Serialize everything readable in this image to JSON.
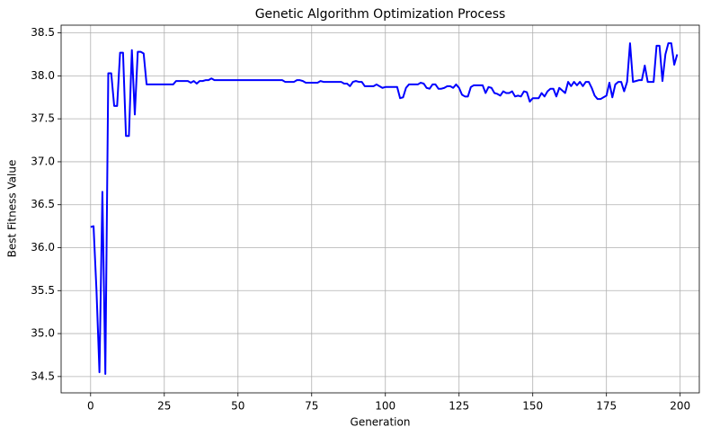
{
  "chart_data": {
    "type": "line",
    "title": "Genetic Algorithm Optimization Process",
    "x_label": "Generation",
    "y_label": "Best Fitness Value",
    "x": [
      0,
      1,
      2,
      3,
      4,
      5,
      6,
      7,
      8,
      9,
      10,
      11,
      12,
      13,
      14,
      15,
      16,
      17,
      18,
      19,
      20,
      21,
      22,
      23,
      24,
      25,
      26,
      27,
      28,
      29,
      30,
      31,
      32,
      33,
      34,
      35,
      36,
      37,
      38,
      39,
      40,
      41,
      42,
      43,
      44,
      45,
      46,
      47,
      48,
      49,
      50,
      51,
      52,
      53,
      54,
      55,
      56,
      57,
      58,
      59,
      60,
      61,
      62,
      63,
      64,
      65,
      66,
      67,
      68,
      69,
      70,
      71,
      72,
      73,
      74,
      75,
      76,
      77,
      78,
      79,
      80,
      81,
      82,
      83,
      84,
      85,
      86,
      87,
      88,
      89,
      90,
      91,
      92,
      93,
      94,
      95,
      96,
      97,
      98,
      99,
      100,
      101,
      102,
      103,
      104,
      105,
      106,
      107,
      108,
      109,
      110,
      111,
      112,
      113,
      114,
      115,
      116,
      117,
      118,
      119,
      120,
      121,
      122,
      123,
      124,
      125,
      126,
      127,
      128,
      129,
      130,
      131,
      132,
      133,
      134,
      135,
      136,
      137,
      138,
      139,
      140,
      141,
      142,
      143,
      144,
      145,
      146,
      147,
      148,
      149,
      150,
      151,
      152,
      153,
      154,
      155,
      156,
      157,
      158,
      159,
      160,
      161,
      162,
      163,
      164,
      165,
      166,
      167,
      168,
      169,
      170,
      171,
      172,
      173,
      174,
      175,
      176,
      177,
      178,
      179,
      180,
      181,
      182,
      183,
      184,
      185,
      186,
      187,
      188,
      189,
      190,
      191,
      192,
      193,
      194,
      195,
      196,
      197,
      198,
      199
    ],
    "series": [
      {
        "color": "#0000ff",
        "values": [
          36.24,
          36.25,
          35.5,
          34.55,
          36.65,
          34.53,
          38.03,
          38.03,
          37.65,
          37.65,
          38.27,
          38.27,
          37.3,
          37.3,
          38.3,
          37.55,
          38.28,
          38.28,
          38.26,
          37.9,
          37.9,
          37.9,
          37.9,
          37.9,
          37.9,
          37.9,
          37.9,
          37.9,
          37.9,
          37.94,
          37.94,
          37.94,
          37.94,
          37.94,
          37.92,
          37.94,
          37.91,
          37.94,
          37.94,
          37.95,
          37.95,
          37.97,
          37.95,
          37.95,
          37.95,
          37.95,
          37.95,
          37.95,
          37.95,
          37.95,
          37.95,
          37.95,
          37.95,
          37.95,
          37.95,
          37.95,
          37.95,
          37.95,
          37.95,
          37.95,
          37.95,
          37.95,
          37.95,
          37.95,
          37.95,
          37.95,
          37.93,
          37.93,
          37.93,
          37.93,
          37.95,
          37.95,
          37.94,
          37.92,
          37.92,
          37.92,
          37.92,
          37.92,
          37.94,
          37.93,
          37.93,
          37.93,
          37.93,
          37.93,
          37.93,
          37.93,
          37.91,
          37.91,
          37.88,
          37.93,
          37.94,
          37.93,
          37.93,
          37.88,
          37.88,
          37.88,
          37.88,
          37.9,
          37.88,
          37.86,
          37.87,
          37.87,
          37.87,
          37.87,
          37.87,
          37.74,
          37.75,
          37.86,
          37.9,
          37.9,
          37.9,
          37.9,
          37.92,
          37.91,
          37.86,
          37.85,
          37.9,
          37.9,
          37.85,
          37.85,
          37.86,
          37.88,
          37.88,
          37.86,
          37.9,
          37.86,
          37.78,
          37.76,
          37.76,
          37.87,
          37.89,
          37.89,
          37.89,
          37.89,
          37.8,
          37.87,
          37.86,
          37.8,
          37.79,
          37.77,
          37.82,
          37.8,
          37.8,
          37.82,
          37.76,
          37.77,
          37.76,
          37.82,
          37.81,
          37.7,
          37.74,
          37.74,
          37.74,
          37.8,
          37.76,
          37.82,
          37.85,
          37.85,
          37.76,
          37.86,
          37.83,
          37.8,
          37.93,
          37.88,
          37.93,
          37.89,
          37.93,
          37.88,
          37.93,
          37.93,
          37.86,
          37.77,
          37.73,
          37.73,
          37.75,
          37.77,
          37.92,
          37.75,
          37.9,
          37.93,
          37.93,
          37.82,
          37.93,
          38.38,
          37.93,
          37.94,
          37.95,
          37.95,
          38.12,
          37.93,
          37.93,
          37.93,
          38.35,
          38.35,
          37.94,
          38.25,
          38.38,
          38.38,
          38.13,
          38.25
        ]
      }
    ],
    "xlim": [
      -10,
      206.5
    ],
    "ylim": [
      34.31,
      38.59
    ],
    "xticks": [
      0,
      25,
      50,
      75,
      100,
      125,
      150,
      175,
      200
    ],
    "yticks": [
      34.5,
      {
        "value": 35,
        "label": "35.0"
      },
      35.5,
      {
        "value": 36,
        "label": "36.0"
      },
      36.5,
      {
        "value": 37,
        "label": "37.0"
      },
      37.5,
      {
        "value": 38,
        "label": "38.0"
      },
      38.5
    ],
    "grid": true
  }
}
